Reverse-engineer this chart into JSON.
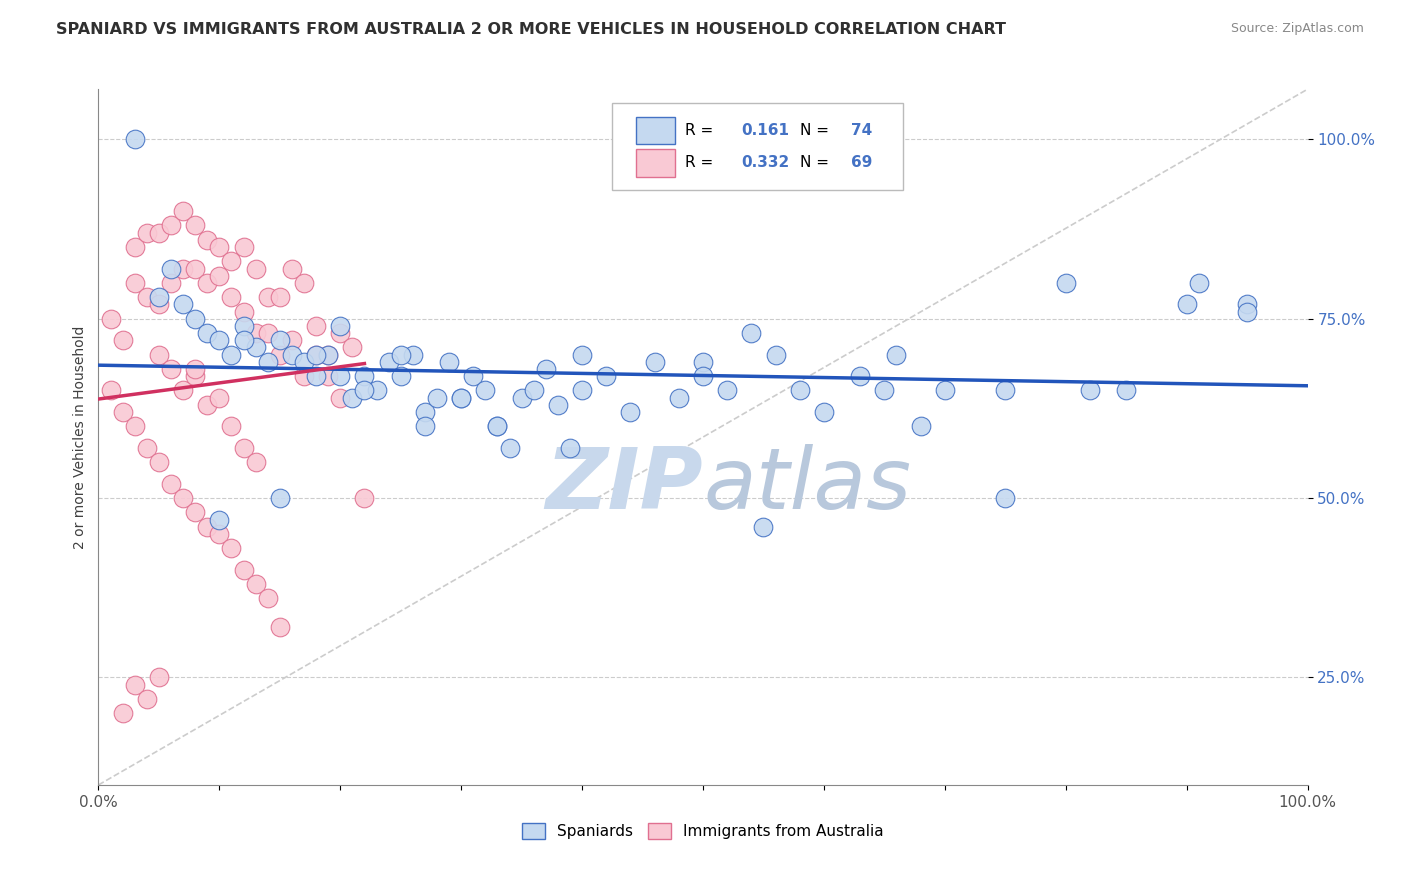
{
  "title": "SPANIARD VS IMMIGRANTS FROM AUSTRALIA 2 OR MORE VEHICLES IN HOUSEHOLD CORRELATION CHART",
  "source": "Source: ZipAtlas.com",
  "ylabel": "2 or more Vehicles in Household",
  "xlim": [
    0,
    100
  ],
  "ylim": [
    10,
    107
  ],
  "yticks": [
    25,
    50,
    75,
    100
  ],
  "ytick_labels": [
    "25.0%",
    "50.0%",
    "75.0%",
    "100.0%"
  ],
  "legend_R_blue": "0.161",
  "legend_N_blue": "74",
  "legend_R_pink": "0.332",
  "legend_N_pink": "69",
  "blue_fill": "#c5d9f0",
  "pink_fill": "#f9c9d4",
  "blue_edge": "#4472c4",
  "pink_edge": "#e07090",
  "blue_line": "#2255bb",
  "pink_line": "#d03060",
  "ref_line_color": "#cccccc",
  "grid_color": "#cccccc",
  "title_color": "#303030",
  "watermark_color": "#c8d8ec",
  "spaniards_x": [
    3,
    5,
    6,
    7,
    8,
    9,
    10,
    11,
    12,
    13,
    14,
    15,
    16,
    17,
    18,
    19,
    20,
    21,
    22,
    23,
    24,
    25,
    26,
    27,
    28,
    29,
    30,
    31,
    32,
    33,
    34,
    35,
    36,
    37,
    38,
    39,
    40,
    42,
    44,
    46,
    48,
    50,
    52,
    54,
    56,
    58,
    60,
    63,
    66,
    70,
    75,
    80,
    85,
    91,
    95,
    10,
    15,
    20,
    25,
    30,
    12,
    18,
    22,
    27,
    33,
    40,
    50,
    55,
    65,
    75,
    82,
    90,
    95,
    68
  ],
  "spaniards_y": [
    100,
    78,
    82,
    77,
    75,
    73,
    72,
    70,
    74,
    71,
    69,
    72,
    70,
    69,
    67,
    70,
    67,
    64,
    67,
    65,
    69,
    67,
    70,
    62,
    64,
    69,
    64,
    67,
    65,
    60,
    57,
    64,
    65,
    68,
    63,
    57,
    70,
    67,
    62,
    69,
    64,
    69,
    65,
    73,
    70,
    65,
    62,
    67,
    70,
    65,
    65,
    80,
    65,
    80,
    77,
    47,
    50,
    74,
    70,
    64,
    72,
    70,
    65,
    60,
    60,
    65,
    67,
    46,
    65,
    50,
    65,
    77,
    76,
    60
  ],
  "australia_x": [
    1,
    2,
    3,
    4,
    5,
    6,
    7,
    8,
    9,
    10,
    11,
    12,
    13,
    14,
    15,
    16,
    17,
    18,
    19,
    20,
    3,
    4,
    5,
    6,
    7,
    8,
    9,
    10,
    11,
    12,
    13,
    14,
    15,
    16,
    17,
    18,
    19,
    20,
    21,
    5,
    6,
    7,
    8,
    9,
    10,
    11,
    12,
    13,
    1,
    2,
    3,
    4,
    5,
    6,
    7,
    8,
    9,
    10,
    11,
    12,
    13,
    14,
    8,
    15,
    22,
    5,
    3,
    4,
    2
  ],
  "australia_y": [
    75,
    72,
    80,
    78,
    77,
    80,
    82,
    82,
    80,
    81,
    78,
    76,
    73,
    73,
    70,
    72,
    67,
    70,
    67,
    64,
    85,
    87,
    87,
    88,
    90,
    88,
    86,
    85,
    83,
    85,
    82,
    78,
    78,
    82,
    80,
    74,
    70,
    73,
    71,
    70,
    68,
    65,
    67,
    63,
    64,
    60,
    57,
    55,
    65,
    62,
    60,
    57,
    55,
    52,
    50,
    48,
    46,
    45,
    43,
    40,
    38,
    36,
    68,
    32,
    50,
    25,
    24,
    22,
    20
  ]
}
